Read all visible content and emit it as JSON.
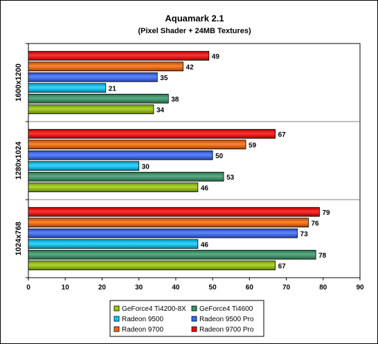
{
  "chart_data": {
    "type": "bar",
    "orientation": "horizontal",
    "title": "Aquamark 2.1",
    "subtitle": "(Pixel Shader + 24MB Textures)",
    "xlabel": "",
    "ylabel": "",
    "xlim": [
      0,
      90
    ],
    "xticks": [
      0,
      10,
      20,
      30,
      40,
      50,
      60,
      70,
      80,
      90
    ],
    "grid": "horizontal group separators",
    "legend_position": "bottom",
    "categories": [
      "1600x1200",
      "1280x1024",
      "1024x768"
    ],
    "series": [
      {
        "name": "GeForce4 Ti4200-8X",
        "color": "#99cc00",
        "values": [
          34,
          46,
          67
        ]
      },
      {
        "name": "GeForce4 Ti4600",
        "color": "#339966",
        "values": [
          38,
          53,
          78
        ]
      },
      {
        "name": "Radeon 9500",
        "color": "#00ccff",
        "values": [
          21,
          30,
          46
        ]
      },
      {
        "name": "Radeon 9500 Pro",
        "color": "#3366ff",
        "values": [
          35,
          50,
          73
        ]
      },
      {
        "name": "Radeon 9700",
        "color": "#ff6600",
        "values": [
          42,
          59,
          76
        ]
      },
      {
        "name": "Radeon 9700 Pro",
        "color": "#ff0000",
        "values": [
          49,
          67,
          79
        ]
      }
    ]
  }
}
